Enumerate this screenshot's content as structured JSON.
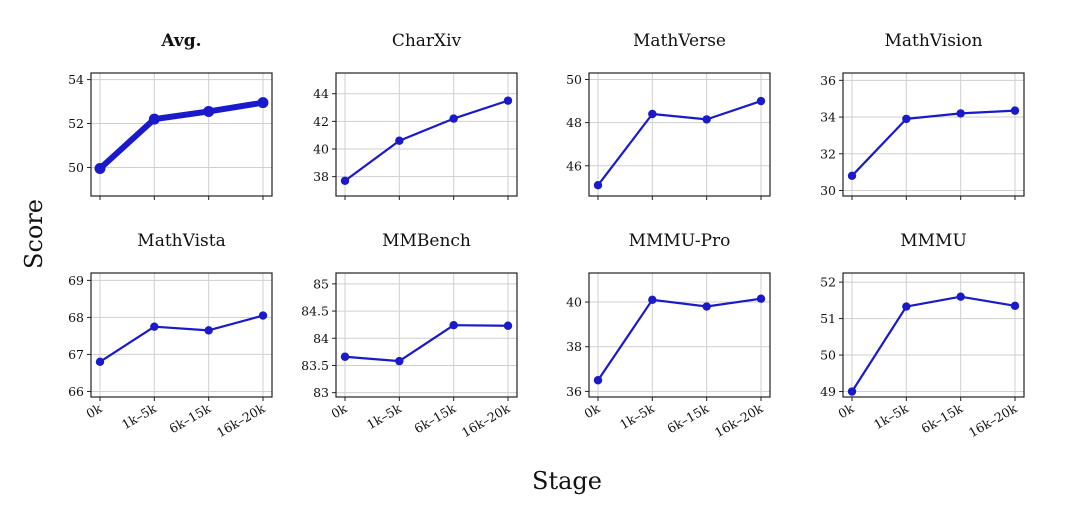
{
  "figure": {
    "ylabel": "Score",
    "xlabel": "Stage",
    "categories": [
      "0k",
      "1k–5k",
      "6k–15k",
      "16k–20k"
    ],
    "line_color": "#1a1acc"
  },
  "chart_data": [
    {
      "type": "line",
      "title": "Avg.",
      "emphasis": true,
      "categories": [
        "0k",
        "1k–5k",
        "6k–15k",
        "16k–20k"
      ],
      "series": [
        {
          "values": [
            49.95,
            52.2,
            52.55,
            52.95
          ]
        }
      ],
      "ylim": [
        48.7,
        54.3
      ],
      "yticks": [
        50,
        52,
        54
      ],
      "ytick_labels": [
        "50",
        "52",
        "54"
      ],
      "grid": true
    },
    {
      "type": "line",
      "title": "CharXiv",
      "categories": [
        "0k",
        "1k–5k",
        "6k–15k",
        "16k–20k"
      ],
      "series": [
        {
          "values": [
            37.7,
            40.6,
            42.2,
            43.5
          ]
        }
      ],
      "ylim": [
        36.6,
        45.5
      ],
      "yticks": [
        38,
        40,
        42,
        44
      ],
      "ytick_labels": [
        "38",
        "40",
        "42",
        "44"
      ],
      "grid": true
    },
    {
      "type": "line",
      "title": "MathVerse",
      "categories": [
        "0k",
        "1k–5k",
        "6k–15k",
        "16k–20k"
      ],
      "series": [
        {
          "values": [
            45.1,
            48.4,
            48.15,
            49.0
          ]
        }
      ],
      "ylim": [
        44.6,
        50.3
      ],
      "yticks": [
        46,
        48,
        50
      ],
      "ytick_labels": [
        "46",
        "48",
        "50"
      ],
      "grid": true
    },
    {
      "type": "line",
      "title": "MathVision",
      "categories": [
        "0k",
        "1k–5k",
        "6k–15k",
        "16k–20k"
      ],
      "series": [
        {
          "values": [
            30.8,
            33.9,
            34.2,
            34.35
          ]
        }
      ],
      "ylim": [
        29.7,
        36.4
      ],
      "yticks": [
        30,
        32,
        34,
        36
      ],
      "ytick_labels": [
        "30",
        "32",
        "34",
        "36"
      ],
      "grid": true
    },
    {
      "type": "line",
      "title": "MathVista",
      "categories": [
        "0k",
        "1k–5k",
        "6k–15k",
        "16k–20k"
      ],
      "series": [
        {
          "values": [
            66.8,
            67.75,
            67.65,
            68.05
          ]
        }
      ],
      "ylim": [
        65.85,
        69.2
      ],
      "yticks": [
        66,
        67,
        68,
        69
      ],
      "ytick_labels": [
        "66",
        "67",
        "68",
        "69"
      ],
      "grid": true
    },
    {
      "type": "line",
      "title": "MMBench",
      "categories": [
        "0k",
        "1k–5k",
        "6k–15k",
        "16k–20k"
      ],
      "series": [
        {
          "values": [
            83.66,
            83.58,
            84.24,
            84.23
          ]
        }
      ],
      "ylim": [
        82.92,
        85.2
      ],
      "yticks": [
        83,
        83.5,
        84,
        84.5,
        85
      ],
      "ytick_labels": [
        "83",
        "83.5",
        "84",
        "84.5",
        "85"
      ],
      "grid": true
    },
    {
      "type": "line",
      "title": "MMMU-Pro",
      "categories": [
        "0k",
        "1k–5k",
        "6k–15k",
        "16k–20k"
      ],
      "series": [
        {
          "values": [
            36.5,
            40.1,
            39.8,
            40.15
          ]
        }
      ],
      "ylim": [
        35.75,
        41.3
      ],
      "yticks": [
        36,
        38,
        40
      ],
      "ytick_labels": [
        "36",
        "38",
        "40"
      ],
      "grid": true
    },
    {
      "type": "line",
      "title": "MMMU",
      "categories": [
        "0k",
        "1k–5k",
        "6k–15k",
        "16k–20k"
      ],
      "series": [
        {
          "values": [
            49.0,
            51.33,
            51.6,
            51.35
          ]
        }
      ],
      "ylim": [
        48.85,
        52.25
      ],
      "yticks": [
        49,
        50,
        51,
        52
      ],
      "ytick_labels": [
        "49",
        "50",
        "51",
        "52"
      ],
      "grid": true
    }
  ]
}
